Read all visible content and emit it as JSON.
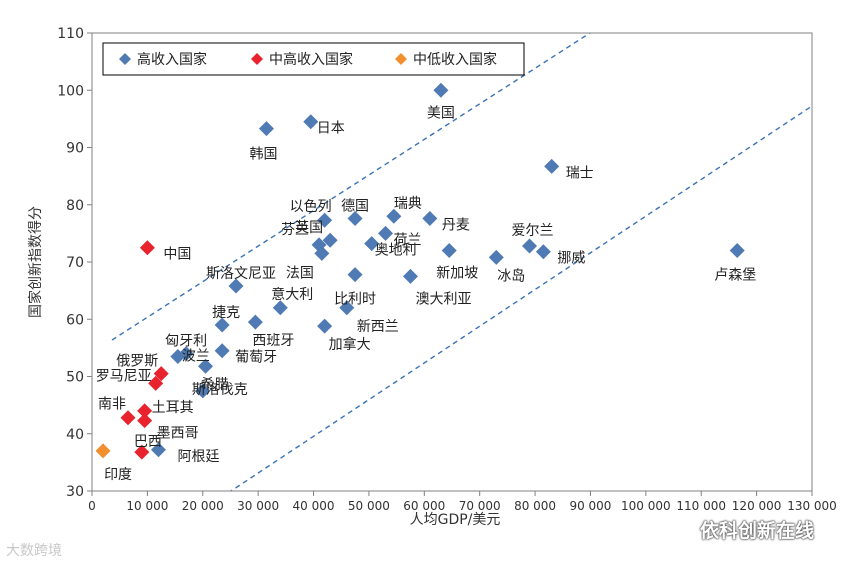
{
  "watermarks": {
    "left": "大数跨境",
    "right": "依科创新在线"
  },
  "chart_data": {
    "type": "scatter",
    "xlabel": "人均GDP/美元",
    "ylabel": "国家创新指数得分",
    "xlim": [
      0,
      130000
    ],
    "ylim": [
      30,
      110
    ],
    "x_ticks": [
      0,
      10000,
      20000,
      30000,
      40000,
      50000,
      60000,
      70000,
      80000,
      90000,
      100000,
      110000,
      120000,
      130000
    ],
    "x_tick_labels": [
      "0",
      "10 000",
      "20 000",
      "30 000",
      "40 000",
      "50 000",
      "60 000",
      "70 000",
      "80 000",
      "90 000",
      "100 000",
      "110 000",
      "120 000",
      "130 000"
    ],
    "y_ticks": [
      30,
      40,
      50,
      60,
      70,
      80,
      90,
      100,
      110
    ],
    "y_tick_labels": [
      "30",
      "40",
      "50",
      "60",
      "70",
      "80",
      "90",
      "100",
      "110"
    ],
    "grid": false,
    "legend_position": "top-left",
    "series": [
      {
        "name": "高收入国家",
        "color": "#4f7ab4",
        "points": [
          {
            "label": "美国",
            "x": 63000,
            "y": 100.0
          },
          {
            "label": "日本",
            "x": 39500,
            "y": 94.5
          },
          {
            "label": "韩国",
            "x": 31500,
            "y": 93.3
          },
          {
            "label": "瑞士",
            "x": 83000,
            "y": 86.7
          },
          {
            "label": "以色列",
            "x": 42000,
            "y": 77.3
          },
          {
            "label": "德国",
            "x": 47500,
            "y": 77.6
          },
          {
            "label": "瑞典",
            "x": 54500,
            "y": 78.0
          },
          {
            "label": "丹麦",
            "x": 61000,
            "y": 77.6
          },
          {
            "label": "爱尔兰",
            "x": 79000,
            "y": 72.8
          },
          {
            "label": "芬兰",
            "x": 41000,
            "y": 73.0
          },
          {
            "label": "英国",
            "x": 43000,
            "y": 73.8
          },
          {
            "label": "荷兰",
            "x": 53000,
            "y": 75.0
          },
          {
            "label": "法国",
            "x": 41500,
            "y": 71.5
          },
          {
            "label": "奥地利",
            "x": 50500,
            "y": 73.2
          },
          {
            "label": "挪威",
            "x": 81500,
            "y": 71.8
          },
          {
            "label": "新加坡",
            "x": 64500,
            "y": 72.0
          },
          {
            "label": "冰岛",
            "x": 73000,
            "y": 70.8
          },
          {
            "label": "卢森堡",
            "x": 116500,
            "y": 72.0
          },
          {
            "label": "比利时",
            "x": 47500,
            "y": 67.8
          },
          {
            "label": "澳大利亚",
            "x": 57500,
            "y": 67.5
          },
          {
            "label": "斯洛文尼亚",
            "x": 26000,
            "y": 65.8
          },
          {
            "label": "意大利",
            "x": 34000,
            "y": 62.0
          },
          {
            "label": "新西兰",
            "x": 46000,
            "y": 62.0
          },
          {
            "label": "捷克",
            "x": 23500,
            "y": 59.0
          },
          {
            "label": "西班牙",
            "x": 29500,
            "y": 59.5
          },
          {
            "label": "加拿大",
            "x": 42000,
            "y": 58.8
          },
          {
            "label": "匈牙利",
            "x": 17000,
            "y": 54.0
          },
          {
            "label": "葡萄牙",
            "x": 23500,
            "y": 54.5
          },
          {
            "label": "波兰",
            "x": 15500,
            "y": 53.5
          },
          {
            "label": "希腊",
            "x": 20500,
            "y": 51.8
          },
          {
            "label": "斯洛伐克",
            "x": 20000,
            "y": 47.5
          },
          {
            "label": "阿根廷",
            "x": 12000,
            "y": 37.2
          }
        ]
      },
      {
        "name": "中高收入国家",
        "color": "#e8232e",
        "points": [
          {
            "label": "中国",
            "x": 10000,
            "y": 72.5
          },
          {
            "label": "俄罗斯",
            "x": 12500,
            "y": 50.5
          },
          {
            "label": "罗马尼亚",
            "x": 11500,
            "y": 48.8
          },
          {
            "label": "南非",
            "x": 6500,
            "y": 42.8
          },
          {
            "label": "土耳其",
            "x": 9500,
            "y": 44.0
          },
          {
            "label": "墨西哥",
            "x": 9500,
            "y": 42.3
          },
          {
            "label": "巴西",
            "x": 9000,
            "y": 36.8
          }
        ]
      },
      {
        "name": "中低收入国家",
        "color": "#f18f2f",
        "points": [
          {
            "label": "印度",
            "x": 2000,
            "y": 37.0
          }
        ]
      }
    ]
  }
}
